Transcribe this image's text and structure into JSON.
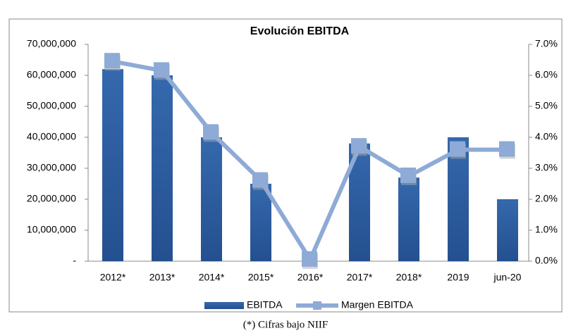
{
  "chart_data": {
    "type": "bar-line",
    "title": "Evolución EBITDA",
    "categories": [
      "2012*",
      "2013*",
      "2014*",
      "2015*",
      "2016*",
      "2017*",
      "2018*",
      "2019",
      "jun-20"
    ],
    "series": [
      {
        "name": "EBITDA",
        "type": "bar",
        "color": "#2f5e9e",
        "values": [
          62000000,
          60000000,
          40000000,
          25000000,
          0,
          38000000,
          27000000,
          40000000,
          20000000
        ]
      },
      {
        "name": "Margen EBITDA",
        "type": "line",
        "axis": "y2",
        "color": "#8eaad6",
        "values": [
          6.45,
          6.15,
          4.15,
          2.6,
          0.05,
          3.7,
          2.75,
          3.6,
          3.6
        ]
      }
    ],
    "ylim": [
      0,
      70000000
    ],
    "yticks": [
      {
        "value": 0,
        "label": "-"
      },
      {
        "value": 10000000,
        "label": "10,000,000"
      },
      {
        "value": 20000000,
        "label": "20,000,000"
      },
      {
        "value": 30000000,
        "label": "30,000,000"
      },
      {
        "value": 40000000,
        "label": "40,000,000"
      },
      {
        "value": 50000000,
        "label": "50,000,000"
      },
      {
        "value": 60000000,
        "label": "60,000,000"
      },
      {
        "value": 70000000,
        "label": "70,000,000"
      }
    ],
    "y2lim": [
      0,
      7
    ],
    "y2ticks": [
      {
        "value": 0,
        "label": "0.0%"
      },
      {
        "value": 1,
        "label": "1.0%"
      },
      {
        "value": 2,
        "label": "2.0%"
      },
      {
        "value": 3,
        "label": "3.0%"
      },
      {
        "value": 4,
        "label": "4.0%"
      },
      {
        "value": 5,
        "label": "5.0%"
      },
      {
        "value": 6,
        "label": "6.0%"
      },
      {
        "value": 7,
        "label": "7.0%"
      }
    ],
    "legend": "bottom"
  },
  "caption": "(*) Cifras bajo NIIF"
}
